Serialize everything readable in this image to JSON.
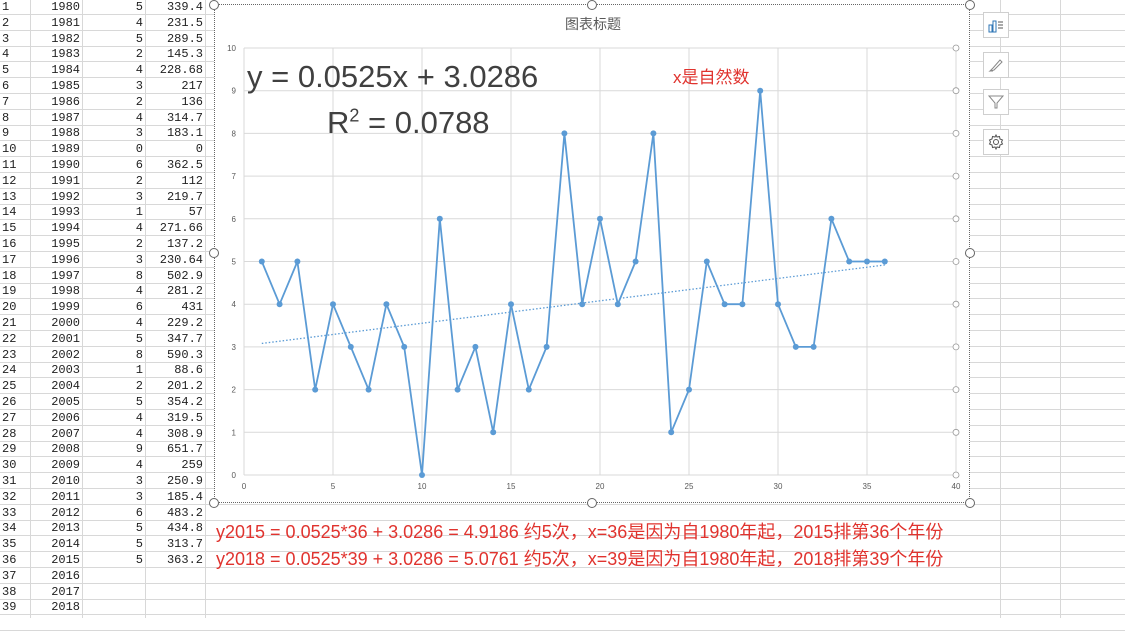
{
  "rows": [
    {
      "n": "1",
      "year": "1980",
      "c": "5",
      "v": "339.4"
    },
    {
      "n": "2",
      "year": "1981",
      "c": "4",
      "v": "231.5"
    },
    {
      "n": "3",
      "year": "1982",
      "c": "5",
      "v": "289.5"
    },
    {
      "n": "4",
      "year": "1983",
      "c": "2",
      "v": "145.3"
    },
    {
      "n": "5",
      "year": "1984",
      "c": "4",
      "v": "228.68"
    },
    {
      "n": "6",
      "year": "1985",
      "c": "3",
      "v": "217"
    },
    {
      "n": "7",
      "year": "1986",
      "c": "2",
      "v": "136"
    },
    {
      "n": "8",
      "year": "1987",
      "c": "4",
      "v": "314.7"
    },
    {
      "n": "9",
      "year": "1988",
      "c": "3",
      "v": "183.1"
    },
    {
      "n": "10",
      "year": "1989",
      "c": "0",
      "v": "0"
    },
    {
      "n": "11",
      "year": "1990",
      "c": "6",
      "v": "362.5"
    },
    {
      "n": "12",
      "year": "1991",
      "c": "2",
      "v": "112"
    },
    {
      "n": "13",
      "year": "1992",
      "c": "3",
      "v": "219.7"
    },
    {
      "n": "14",
      "year": "1993",
      "c": "1",
      "v": "57"
    },
    {
      "n": "15",
      "year": "1994",
      "c": "4",
      "v": "271.66"
    },
    {
      "n": "16",
      "year": "1995",
      "c": "2",
      "v": "137.2"
    },
    {
      "n": "17",
      "year": "1996",
      "c": "3",
      "v": "230.64"
    },
    {
      "n": "18",
      "year": "1997",
      "c": "8",
      "v": "502.9"
    },
    {
      "n": "19",
      "year": "1998",
      "c": "4",
      "v": "281.2"
    },
    {
      "n": "20",
      "year": "1999",
      "c": "6",
      "v": "431"
    },
    {
      "n": "21",
      "year": "2000",
      "c": "4",
      "v": "229.2"
    },
    {
      "n": "22",
      "year": "2001",
      "c": "5",
      "v": "347.7"
    },
    {
      "n": "23",
      "year": "2002",
      "c": "8",
      "v": "590.3"
    },
    {
      "n": "24",
      "year": "2003",
      "c": "1",
      "v": "88.6"
    },
    {
      "n": "25",
      "year": "2004",
      "c": "2",
      "v": "201.2"
    },
    {
      "n": "26",
      "year": "2005",
      "c": "5",
      "v": "354.2"
    },
    {
      "n": "27",
      "year": "2006",
      "c": "4",
      "v": "319.5"
    },
    {
      "n": "28",
      "year": "2007",
      "c": "4",
      "v": "308.9"
    },
    {
      "n": "29",
      "year": "2008",
      "c": "9",
      "v": "651.7"
    },
    {
      "n": "30",
      "year": "2009",
      "c": "4",
      "v": "259"
    },
    {
      "n": "31",
      "year": "2010",
      "c": "3",
      "v": "250.9"
    },
    {
      "n": "32",
      "year": "2011",
      "c": "3",
      "v": "185.4"
    },
    {
      "n": "33",
      "year": "2012",
      "c": "6",
      "v": "483.2"
    },
    {
      "n": "34",
      "year": "2013",
      "c": "5",
      "v": "434.8"
    },
    {
      "n": "35",
      "year": "2014",
      "c": "5",
      "v": "313.7"
    },
    {
      "n": "36",
      "year": "2015",
      "c": "5",
      "v": "363.2"
    },
    {
      "n": "37",
      "year": "2016",
      "c": "",
      "v": ""
    },
    {
      "n": "38",
      "year": "2017",
      "c": "",
      "v": ""
    },
    {
      "n": "39",
      "year": "2018",
      "c": "",
      "v": ""
    }
  ],
  "chart": {
    "title": "图表标题",
    "equation": "y = 0.0525x + 3.0286",
    "r2_prefix": "R",
    "r2_sup": "2",
    "r2_rest": " = 0.0788",
    "x_note": "x是自然数"
  },
  "chart_data": {
    "type": "line",
    "title": "图表标题",
    "xlabel": "",
    "ylabel": "",
    "xlim": [
      0,
      40
    ],
    "ylim": [
      0,
      10
    ],
    "x_ticks": [
      0,
      5,
      10,
      15,
      20,
      25,
      30,
      35,
      40
    ],
    "y_ticks": [
      0,
      1,
      2,
      3,
      4,
      5,
      6,
      7,
      8,
      9,
      10
    ],
    "series": [
      {
        "x": [
          1,
          2,
          3,
          4,
          5,
          6,
          7,
          8,
          9,
          10,
          11,
          12,
          13,
          14,
          15,
          16,
          17,
          18,
          19,
          20,
          21,
          22,
          23,
          24,
          25,
          26,
          27,
          28,
          29,
          30,
          31,
          32,
          33,
          34,
          35,
          36
        ],
        "y": [
          5,
          4,
          5,
          2,
          4,
          3,
          2,
          4,
          3,
          0,
          6,
          2,
          3,
          1,
          4,
          2,
          3,
          8,
          4,
          6,
          4,
          5,
          8,
          1,
          2,
          5,
          4,
          4,
          9,
          4,
          3,
          3,
          6,
          5,
          5,
          5
        ]
      }
    ],
    "trendline": {
      "slope": 0.0525,
      "intercept": 3.0286,
      "style": "dotted"
    },
    "grid": true,
    "colors": {
      "series": "#5b9bd5",
      "grid": "#d9d9d9"
    }
  },
  "notes": {
    "line1": "y2015 = 0.0525*36 + 3.0286 = 4.9186 约5次，x=36是因为自1980年起，2015排第36个年份",
    "line2": "y2018 = 0.0525*39 + 3.0286 = 5.0761 约5次，x=39是因为自1980年起，2018排第39个年份"
  },
  "side_buttons": [
    {
      "icon": "chart-elements-icon"
    },
    {
      "icon": "chart-styles-brush-icon"
    },
    {
      "icon": "chart-filter-icon"
    },
    {
      "icon": "settings-gear-icon"
    }
  ]
}
